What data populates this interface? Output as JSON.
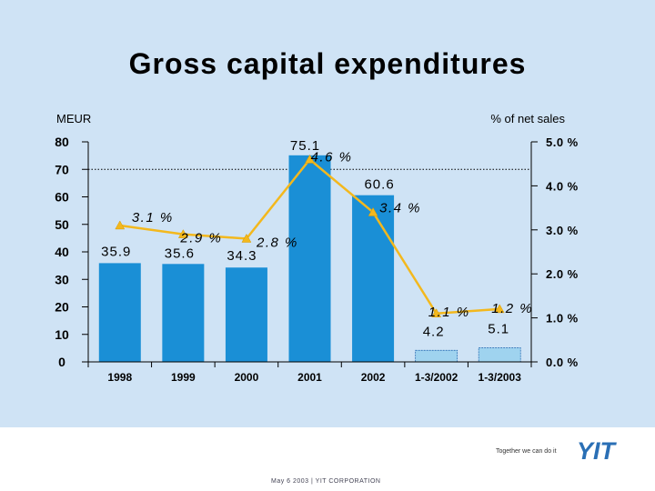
{
  "slide": {
    "title": "Gross capital expenditures",
    "tagline": "Together we can do it",
    "footer": "May 6 2003   |   YIT CORPORATION",
    "logo_text": "YIT"
  },
  "colors": {
    "background_panel": "#cfe3f5",
    "bar": "#1a8fd6",
    "bar_partial": "#9fd3ef",
    "line": "#f3b81d",
    "logo": "#2a6fb5"
  },
  "chart_data": {
    "type": "bar",
    "categories": [
      "1998",
      "1999",
      "2000",
      "2001",
      "2002",
      "1-3/2002",
      "1-3/2003"
    ],
    "ylabel": "MEUR",
    "y2label": "% of net sales",
    "ylim": [
      0,
      80
    ],
    "y2lim": [
      0.0,
      5.0
    ],
    "yticks": [
      "0",
      "10",
      "20",
      "30",
      "40",
      "50",
      "60",
      "70",
      "80"
    ],
    "y2ticks": [
      "0.0 %",
      "1.0 %",
      "2.0 %",
      "3.0 %",
      "4.0 %",
      "5.0 %"
    ],
    "reference_line": 70,
    "series": [
      {
        "kind": "bar",
        "values": [
          35.9,
          35.6,
          34.3,
          75.1,
          60.6,
          4.2,
          5.1
        ],
        "labels": [
          "35.9",
          "35.6",
          "34.3",
          "75.1",
          "60.6",
          "4.2",
          "5.1"
        ]
      },
      {
        "kind": "line",
        "axis": "right",
        "values": [
          3.1,
          2.9,
          2.8,
          4.6,
          3.4,
          1.1,
          1.2
        ],
        "labels": [
          "3.1 %",
          "2.9 %",
          "2.8 %",
          "4.6 %",
          "3.4 %",
          "1.1 %",
          "1.2 %"
        ]
      }
    ]
  }
}
